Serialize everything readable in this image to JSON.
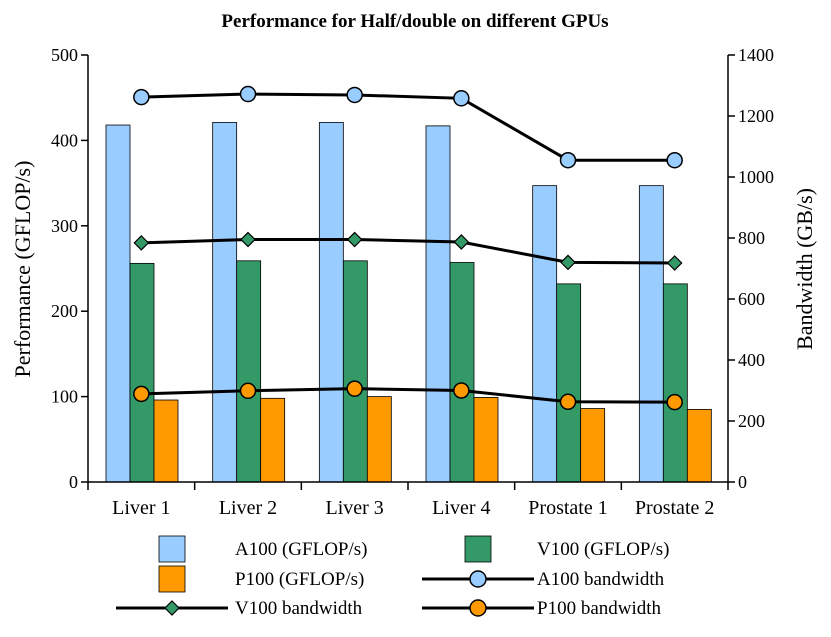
{
  "chart_data": {
    "type": "bar",
    "title": "Performance for Half/double on different GPUs",
    "categories": [
      "Liver 1",
      "Liver 2",
      "Liver 3",
      "Liver 4",
      "Prostate 1",
      "Prostate 2"
    ],
    "ylabel": "Performance (GFLOP/s)",
    "y2label": "Bandwidth (GB/s)",
    "ylim": [
      0,
      500
    ],
    "y2lim": [
      0,
      1400
    ],
    "yticks": [
      0,
      100,
      200,
      300,
      400,
      500
    ],
    "y2ticks": [
      0,
      200,
      400,
      600,
      800,
      1000,
      1200,
      1400
    ],
    "grid": false,
    "legend_position": "bottom",
    "bar_series": [
      {
        "name": "A100 (GFLOP/s)",
        "color": "#99CCFF",
        "values": [
          418,
          421,
          421,
          417,
          347,
          347
        ]
      },
      {
        "name": "V100 (GFLOP/s)",
        "color": "#339966",
        "values": [
          256,
          259,
          259,
          257,
          232,
          232
        ]
      },
      {
        "name": "P100 (GFLOP/s)",
        "color": "#FF9900",
        "values": [
          96,
          98,
          100,
          99,
          86,
          85
        ]
      }
    ],
    "line_series": [
      {
        "name": "A100 bandwidth",
        "axis": "right",
        "marker": "circle",
        "color": "#99CCFF",
        "values": [
          1262,
          1272,
          1269,
          1258,
          1055,
          1055
        ]
      },
      {
        "name": "V100 bandwidth",
        "axis": "right",
        "marker": "diamond",
        "color": "#339966",
        "values": [
          784,
          795,
          795,
          787,
          720,
          718
        ]
      },
      {
        "name": "P100 bandwidth",
        "axis": "right",
        "marker": "circle",
        "color": "#FF9900",
        "values": [
          289,
          299,
          306,
          300,
          263,
          262
        ]
      }
    ]
  }
}
